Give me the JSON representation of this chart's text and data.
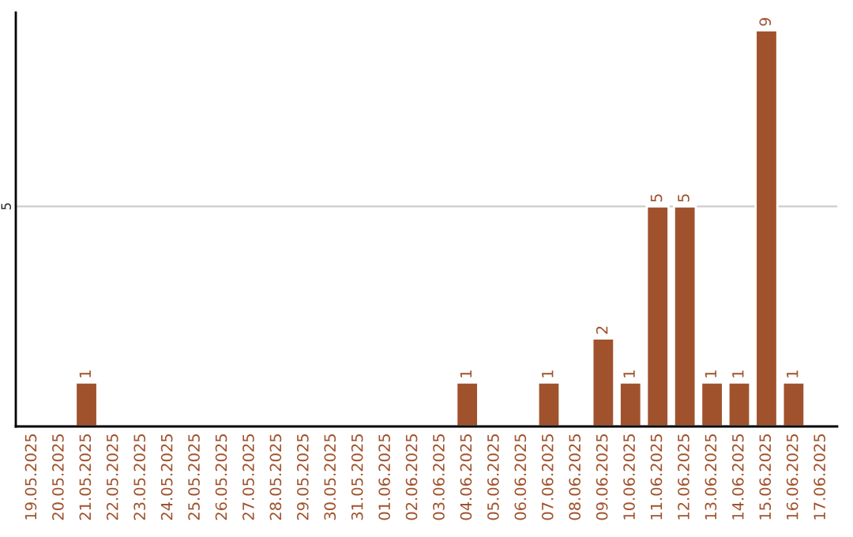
{
  "chart_data": {
    "type": "bar",
    "categories": [
      "19.05.2025",
      "20.05.2025",
      "21.05.2025",
      "22.05.2025",
      "23.05.2025",
      "24.05.2025",
      "25.05.2025",
      "26.05.2025",
      "27.05.2025",
      "28.05.2025",
      "29.05.2025",
      "30.05.2025",
      "31.05.2025",
      "01.06.2025",
      "02.06.2025",
      "03.06.2025",
      "04.06.2025",
      "05.06.2025",
      "06.06.2025",
      "07.06.2025",
      "08.06.2025",
      "09.06.2025",
      "10.06.2025",
      "11.06.2025",
      "12.06.2025",
      "13.06.2025",
      "14.06.2025",
      "15.06.2025",
      "16.06.2025",
      "17.06.2025"
    ],
    "values": [
      0,
      0,
      1,
      0,
      0,
      0,
      0,
      0,
      0,
      0,
      0,
      0,
      0,
      0,
      0,
      0,
      1,
      0,
      0,
      1,
      0,
      2,
      1,
      5,
      5,
      1,
      1,
      9,
      1,
      0
    ],
    "value_labels": [
      null,
      null,
      "1",
      null,
      null,
      null,
      null,
      null,
      null,
      null,
      null,
      null,
      null,
      null,
      null,
      null,
      "1",
      null,
      null,
      "1",
      null,
      "2",
      "1",
      "5",
      "5",
      "1",
      "1",
      "9",
      "1",
      null
    ],
    "color": "#a0522d",
    "ylim": [
      0,
      9.4
    ],
    "yticks": [
      5
    ],
    "grid": "y"
  }
}
